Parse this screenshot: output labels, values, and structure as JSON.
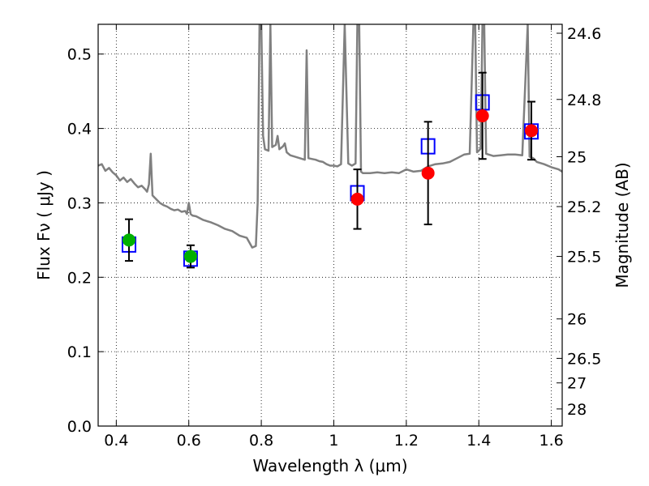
{
  "chart_data": {
    "type": "scatter",
    "xlabel": "Wavelength  λ (μm)",
    "ylabel": "Flux  Fν  ( μJy )",
    "ylabel_right": "Magnitude (AB)",
    "xlim": [
      0.35,
      1.63
    ],
    "ylim": [
      0.0,
      0.54
    ],
    "grid": true,
    "x_ticks": [
      0.4,
      0.6,
      0.8,
      1.0,
      1.2,
      1.4,
      1.6
    ],
    "x_tick_labels": [
      "0.4",
      "0.6",
      "0.8",
      "1",
      "1.2",
      "1.4",
      "1.6"
    ],
    "y_ticks": [
      0.0,
      0.1,
      0.2,
      0.3,
      0.4,
      0.5
    ],
    "y_tick_labels": [
      "0.0",
      "0.1",
      "0.2",
      "0.3",
      "0.4",
      "0.5"
    ],
    "right_axis_ticks": [
      {
        "label": "24.6",
        "flux": 0.528
      },
      {
        "label": "24.8",
        "flux": 0.439
      },
      {
        "label": "25",
        "flux": 0.362
      },
      {
        "label": "25.2",
        "flux": 0.295
      },
      {
        "label": "25.5",
        "flux": 0.228
      },
      {
        "label": "26",
        "flux": 0.144
      },
      {
        "label": "26.5",
        "flux": 0.091
      },
      {
        "label": "27",
        "flux": 0.058
      },
      {
        "label": "28",
        "flux": 0.023
      }
    ],
    "series": [
      {
        "kind": "model_spectrum_line",
        "color": "#808080",
        "points": [
          [
            0.35,
            0.35
          ],
          [
            0.36,
            0.352
          ],
          [
            0.37,
            0.343
          ],
          [
            0.38,
            0.347
          ],
          [
            0.39,
            0.341
          ],
          [
            0.4,
            0.337
          ],
          [
            0.41,
            0.33
          ],
          [
            0.42,
            0.334
          ],
          [
            0.43,
            0.328
          ],
          [
            0.44,
            0.332
          ],
          [
            0.45,
            0.326
          ],
          [
            0.46,
            0.321
          ],
          [
            0.47,
            0.323
          ],
          [
            0.48,
            0.318
          ],
          [
            0.485,
            0.315
          ],
          [
            0.49,
            0.325
          ],
          [
            0.495,
            0.366
          ],
          [
            0.5,
            0.31
          ],
          [
            0.51,
            0.305
          ],
          [
            0.52,
            0.3
          ],
          [
            0.53,
            0.297
          ],
          [
            0.54,
            0.295
          ],
          [
            0.55,
            0.292
          ],
          [
            0.56,
            0.29
          ],
          [
            0.57,
            0.291
          ],
          [
            0.58,
            0.288
          ],
          [
            0.59,
            0.289
          ],
          [
            0.595,
            0.285
          ],
          [
            0.6,
            0.3
          ],
          [
            0.605,
            0.285
          ],
          [
            0.61,
            0.283
          ],
          [
            0.62,
            0.282
          ],
          [
            0.64,
            0.277
          ],
          [
            0.66,
            0.274
          ],
          [
            0.68,
            0.27
          ],
          [
            0.7,
            0.265
          ],
          [
            0.72,
            0.262
          ],
          [
            0.74,
            0.256
          ],
          [
            0.76,
            0.253
          ],
          [
            0.775,
            0.24
          ],
          [
            0.785,
            0.242
          ],
          [
            0.79,
            0.3
          ],
          [
            0.795,
            0.54
          ],
          [
            0.8,
            0.54
          ],
          [
            0.805,
            0.39
          ],
          [
            0.81,
            0.372
          ],
          [
            0.82,
            0.37
          ],
          [
            0.825,
            0.54
          ],
          [
            0.83,
            0.375
          ],
          [
            0.84,
            0.378
          ],
          [
            0.845,
            0.39
          ],
          [
            0.85,
            0.372
          ],
          [
            0.86,
            0.376
          ],
          [
            0.865,
            0.38
          ],
          [
            0.87,
            0.368
          ],
          [
            0.88,
            0.364
          ],
          [
            0.9,
            0.361
          ],
          [
            0.92,
            0.358
          ],
          [
            0.925,
            0.505
          ],
          [
            0.93,
            0.36
          ],
          [
            0.94,
            0.359
          ],
          [
            0.95,
            0.358
          ],
          [
            0.96,
            0.356
          ],
          [
            0.97,
            0.355
          ],
          [
            0.98,
            0.352
          ],
          [
            0.99,
            0.35
          ],
          [
            1.0,
            0.35
          ],
          [
            1.01,
            0.349
          ],
          [
            1.02,
            0.352
          ],
          [
            1.03,
            0.54
          ],
          [
            1.04,
            0.353
          ],
          [
            1.05,
            0.35
          ],
          [
            1.06,
            0.353
          ],
          [
            1.065,
            0.54
          ],
          [
            1.07,
            0.54
          ],
          [
            1.075,
            0.342
          ],
          [
            1.08,
            0.34
          ],
          [
            1.1,
            0.34
          ],
          [
            1.12,
            0.341
          ],
          [
            1.14,
            0.34
          ],
          [
            1.16,
            0.341
          ],
          [
            1.18,
            0.34
          ],
          [
            1.2,
            0.345
          ],
          [
            1.22,
            0.342
          ],
          [
            1.24,
            0.343
          ],
          [
            1.26,
            0.349
          ],
          [
            1.28,
            0.352
          ],
          [
            1.3,
            0.353
          ],
          [
            1.32,
            0.355
          ],
          [
            1.34,
            0.36
          ],
          [
            1.36,
            0.365
          ],
          [
            1.375,
            0.366
          ],
          [
            1.385,
            0.54
          ],
          [
            1.39,
            0.54
          ],
          [
            1.395,
            0.368
          ],
          [
            1.4,
            0.37
          ],
          [
            1.405,
            0.373
          ],
          [
            1.41,
            0.54
          ],
          [
            1.415,
            0.54
          ],
          [
            1.42,
            0.366
          ],
          [
            1.44,
            0.363
          ],
          [
            1.46,
            0.364
          ],
          [
            1.48,
            0.365
          ],
          [
            1.5,
            0.365
          ],
          [
            1.52,
            0.364
          ],
          [
            1.535,
            0.54
          ],
          [
            1.54,
            0.362
          ],
          [
            1.55,
            0.36
          ],
          [
            1.56,
            0.355
          ],
          [
            1.58,
            0.352
          ],
          [
            1.6,
            0.348
          ],
          [
            1.62,
            0.345
          ],
          [
            1.63,
            0.342
          ]
        ]
      },
      {
        "kind": "model_photometry_boxes",
        "color": "#0000ff",
        "points": [
          [
            0.435,
            0.244
          ],
          [
            0.605,
            0.225
          ],
          [
            1.065,
            0.313
          ],
          [
            1.26,
            0.376
          ],
          [
            1.41,
            0.435
          ],
          [
            1.545,
            0.396
          ]
        ]
      },
      {
        "kind": "observed_green",
        "color": "#00b000",
        "points": [
          [
            0.435,
            0.25,
            0.028
          ],
          [
            0.605,
            0.228,
            0.015
          ]
        ]
      },
      {
        "kind": "observed_red",
        "color": "#ff0000",
        "points": [
          [
            1.065,
            0.305,
            0.04
          ],
          [
            1.26,
            0.34,
            0.069
          ],
          [
            1.41,
            0.417,
            0.058
          ],
          [
            1.545,
            0.397,
            0.039
          ]
        ]
      }
    ]
  }
}
